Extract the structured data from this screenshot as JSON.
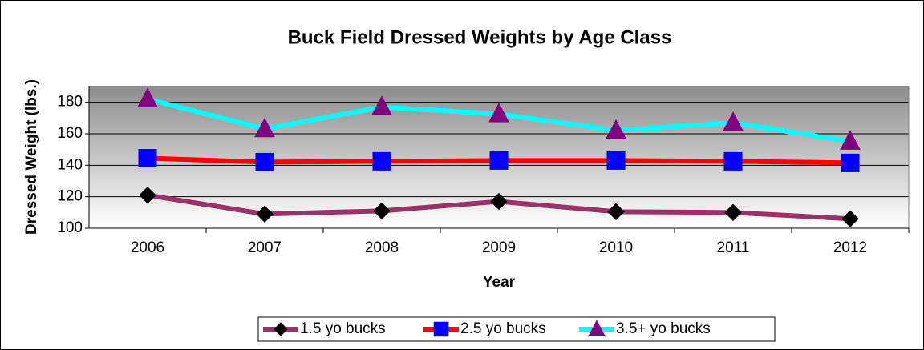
{
  "chart_data": {
    "type": "line",
    "title": "Buck Field Dressed Weights by Age Class",
    "x_label": "Year",
    "y_label": "Dressed Weight (lbs.)",
    "categories": [
      "2006",
      "2007",
      "2008",
      "2009",
      "2010",
      "2011",
      "2012"
    ],
    "series": [
      {
        "name": "1.5 yo bucks",
        "color": "#993366",
        "marker": "diamond",
        "marker_color": "#000000",
        "values": [
          121,
          109,
          111,
          117,
          110.5,
          110,
          106
        ]
      },
      {
        "name": "2.5 yo bucks",
        "color": "#ff0000",
        "marker": "square",
        "marker_color": "#0000ff",
        "values": [
          144.5,
          142,
          142.5,
          143,
          143,
          142.5,
          141.5
        ]
      },
      {
        "name": "3.5+ yo bucks",
        "color": "#00ffff",
        "marker": "triangle",
        "marker_color": "#800080",
        "values": [
          182,
          163,
          177,
          172.5,
          162,
          167,
          155
        ]
      }
    ],
    "ylim": [
      100,
      190
    ],
    "yticks": [
      100,
      120,
      140,
      160,
      180
    ],
    "grid": true,
    "legend": "bottom"
  }
}
